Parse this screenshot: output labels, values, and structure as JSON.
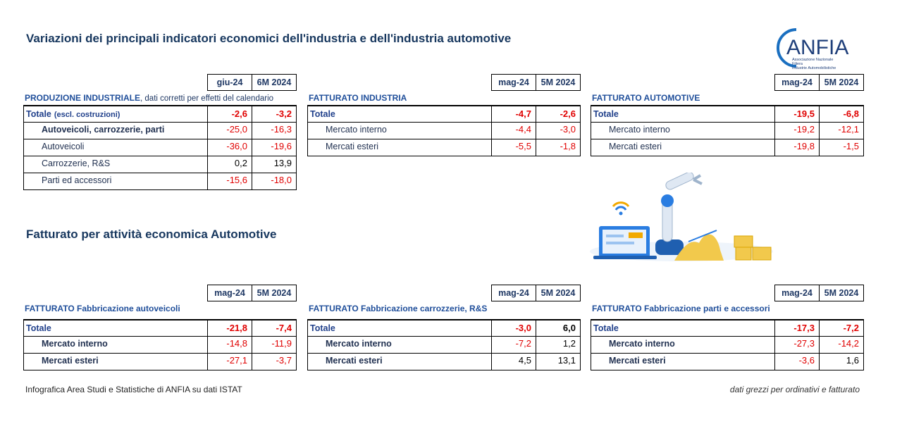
{
  "title": "Variazioni dei principali indicatori economici dell'industria e dell'industria automotive",
  "logo": {
    "name": "ANFIA",
    "lines": [
      "Associazione Nazionale",
      "Filiera",
      "Industrie Automobilistiche"
    ]
  },
  "section2_title": "Fatturato per attività economica Automotive",
  "tables": [
    {
      "header": [
        "giu-24",
        "6M 2024"
      ],
      "caption": "PRODUZIONE INDUSTRIALE",
      "caption_note": ", dati corretti per effetti del calendario",
      "rows": [
        {
          "label": "Totale",
          "note": "(escl. costruzioni)",
          "values": [
            "-2,6",
            "-3,2"
          ]
        },
        {
          "label": "Autoveicoli, carrozzerie, parti",
          "values": [
            "-25,0",
            "-16,3"
          ]
        },
        {
          "label": "Autoveicoli",
          "values": [
            "-36,0",
            "-19,6"
          ]
        },
        {
          "label": "Carrozzerie, R&S",
          "values": [
            "0,2",
            "13,9"
          ]
        },
        {
          "label": "Parti ed accessori",
          "values": [
            "-15,6",
            "-18,0"
          ]
        }
      ]
    },
    {
      "header": [
        "mag-24",
        "5M 2024"
      ],
      "caption": "FATTURATO INDUSTRIA",
      "rows": [
        {
          "label": "Totale",
          "values": [
            "-4,7",
            "-2,6"
          ]
        },
        {
          "label": "Mercato interno",
          "values": [
            "-4,4",
            "-3,0"
          ]
        },
        {
          "label": "Mercati esteri",
          "values": [
            "-5,5",
            "-1,8"
          ]
        }
      ]
    },
    {
      "header": [
        "mag-24",
        "5M 2024"
      ],
      "caption": "FATTURATO AUTOMOTIVE",
      "rows": [
        {
          "label": "Totale",
          "values": [
            "-19,5",
            "-6,8"
          ]
        },
        {
          "label": "Mercato interno",
          "values": [
            "-19,2",
            "-12,1"
          ]
        },
        {
          "label": "Mercati esteri",
          "values": [
            "-19,8",
            "-1,5"
          ]
        }
      ]
    },
    {
      "header": [
        "mag-24",
        "5M 2024"
      ],
      "caption": "FATTURATO Fabbricazione autoveicoli",
      "rows": [
        {
          "label": "Totale",
          "values": [
            "-21,8",
            "-7,4"
          ]
        },
        {
          "label": "Mercato interno",
          "values": [
            "-14,8",
            "-11,9"
          ]
        },
        {
          "label": "Mercati esteri",
          "values": [
            "-27,1",
            "-3,7"
          ]
        }
      ]
    },
    {
      "header": [
        "mag-24",
        "5M 2024"
      ],
      "caption": "FATTURATO Fabbricazione carrozzerie, R&S",
      "rows": [
        {
          "label": "Totale",
          "values": [
            "-3,0",
            "6,0"
          ]
        },
        {
          "label": "Mercato interno",
          "values": [
            "-7,2",
            "1,2"
          ]
        },
        {
          "label": "Mercati esteri",
          "values": [
            "4,5",
            "13,1"
          ]
        }
      ]
    },
    {
      "header": [
        "mag-24",
        "5M 2024"
      ],
      "caption": "FATTURATO Fabbricazione parti e accessori",
      "rows": [
        {
          "label": "Totale",
          "values": [
            "-17,3",
            "-7,2"
          ]
        },
        {
          "label": "Mercato interno",
          "values": [
            "-27,3",
            "-14,2"
          ]
        },
        {
          "label": "Mercati esteri",
          "values": [
            "-3,6",
            "1,6"
          ]
        }
      ]
    }
  ],
  "footer_left": "Infografica Area Studi e Statistiche di ANFIA su dati ISTAT",
  "footer_right": "dati grezzi per ordinativi e fatturato"
}
